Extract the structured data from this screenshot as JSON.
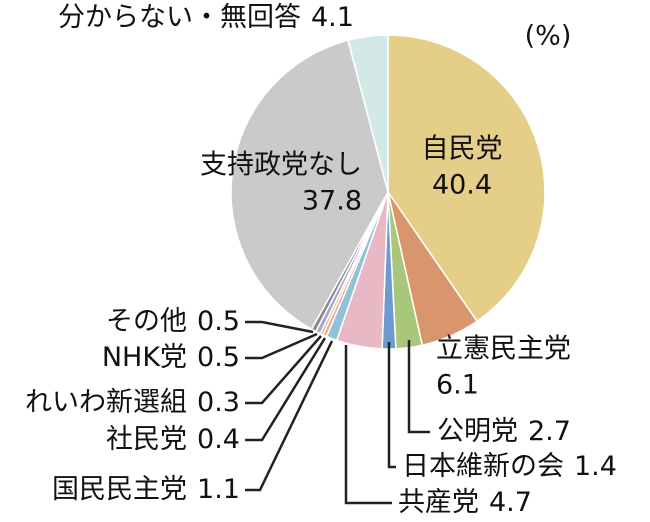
{
  "chart_data": {
    "type": "pie",
    "unit_label": "(%)",
    "categories": [
      "自民党",
      "立憲民主党",
      "公明党",
      "日本維新の会",
      "共産党",
      "国民民主党",
      "社民党",
      "れいわ新選組",
      "NHK党",
      "その他",
      "支持政党なし",
      "分からない・無回答"
    ],
    "values": [
      40.4,
      6.1,
      2.7,
      1.4,
      4.7,
      1.1,
      0.4,
      0.3,
      0.5,
      0.5,
      37.8,
      4.1
    ],
    "colors": [
      "#e5cf88",
      "#d9966c",
      "#a8c77a",
      "#6d9bcf",
      "#e8b8c5",
      "#8fc2d6",
      "#f0a898",
      "#d8c070",
      "#a4a4d4",
      "#8a8a8a",
      "#cacaca",
      "#d3e9e8"
    ]
  }
}
